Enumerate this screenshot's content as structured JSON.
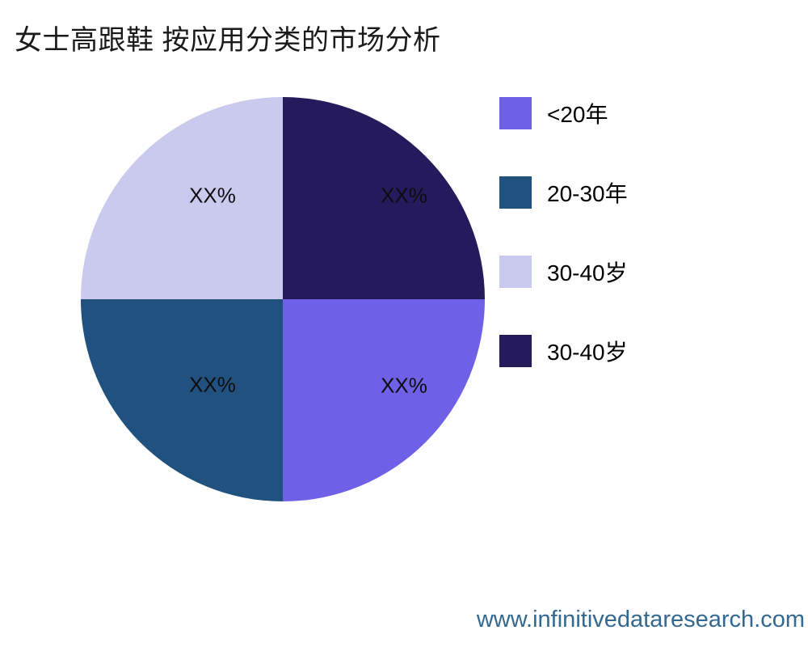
{
  "title": "女士高跟鞋 按应用分类的市场分析",
  "footer": {
    "website": "www.infinitivedataresearch.com",
    "color": "#336990"
  },
  "chart_data": {
    "type": "pie",
    "title": "女士高跟鞋 按应用分类的市场分析",
    "legend_position": "right",
    "start_angle_deg": 0,
    "direction": "clockwise",
    "slices": [
      {
        "legend": "<20年",
        "value": 25,
        "display_label": "XX%",
        "color": "#6E61E8"
      },
      {
        "legend": "20-30年",
        "value": 25,
        "display_label": "XX%",
        "color": "#21517E"
      },
      {
        "legend": "30-40岁",
        "value": 25,
        "display_label": "XX%",
        "color": "#C9CAEE"
      },
      {
        "legend": "30-40岁",
        "value": 25,
        "display_label": "XX%",
        "color": "#251B5C"
      }
    ]
  }
}
